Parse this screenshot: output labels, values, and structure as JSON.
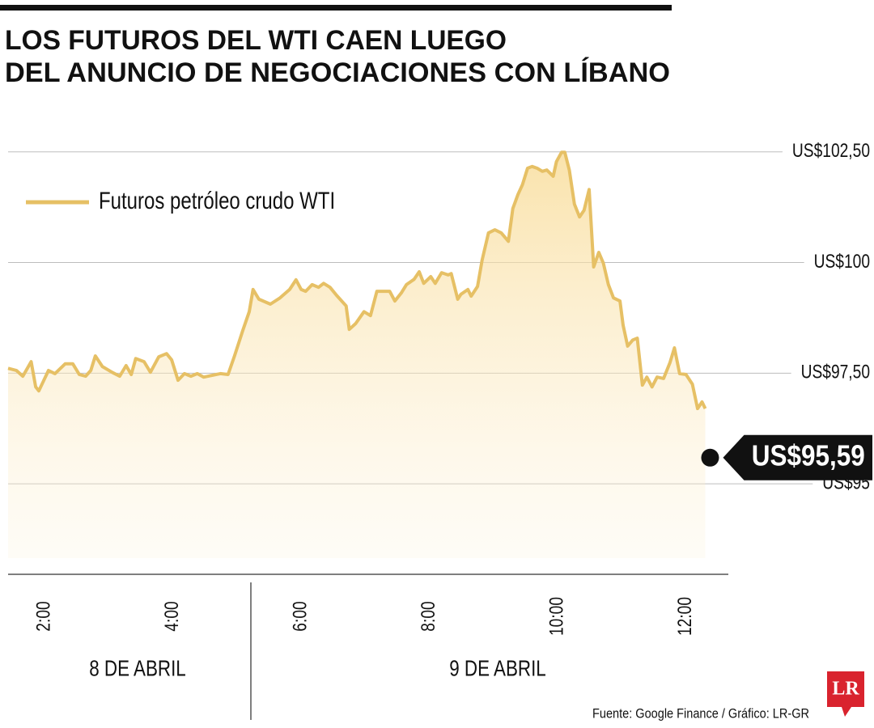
{
  "chart_data": {
    "type": "line",
    "title": [
      "LOS FUTUROS DEL WTI CAEN LUEGO",
      "DEL ANUNCIO DE NEGOCIACIONES CON LÍBANO"
    ],
    "legend_position": "upper left",
    "grid": true,
    "xlim": [
      1.43,
      12.66
    ],
    "ylim": [
      93.32,
      103.3
    ],
    "yticks": [
      {
        "value": 95,
        "label": "US$95"
      },
      {
        "value": 97.5,
        "label": "US$97,50"
      },
      {
        "value": 100,
        "label": "US$100"
      },
      {
        "value": 102.5,
        "label": "US$102,50"
      }
    ],
    "xticks": [
      {
        "value": 2,
        "label": "2:00"
      },
      {
        "value": 4,
        "label": "4:00"
      },
      {
        "value": 6,
        "label": "6:00"
      },
      {
        "value": 8,
        "label": "8:00"
      },
      {
        "value": 10,
        "label": "10:00"
      },
      {
        "value": 12,
        "label": "12:00"
      }
    ],
    "x_groups": [
      "8 DE ABRIL",
      "9 DE ABRIL"
    ],
    "series": [
      {
        "name": "Futuros petróleo crudo WTI",
        "color": "#e6c065",
        "x": [
          1.43,
          1.56,
          1.66,
          1.79,
          1.86,
          1.91,
          2.06,
          2.16,
          2.32,
          2.44,
          2.54,
          2.64,
          2.72,
          2.79,
          2.9,
          3.05,
          3.17,
          3.27,
          3.35,
          3.42,
          3.55,
          3.65,
          3.78,
          3.9,
          3.98,
          4.08,
          4.18,
          4.28,
          4.38,
          4.48,
          4.61,
          4.74,
          4.86,
          4.96,
          5.09,
          5.19,
          5.25,
          5.34,
          5.52,
          5.67,
          5.82,
          5.92,
          6.0,
          6.07,
          6.17,
          6.27,
          6.35,
          6.45,
          6.55,
          6.7,
          6.75,
          6.85,
          6.98,
          7.08,
          7.18,
          7.28,
          7.38,
          7.46,
          7.56,
          7.64,
          7.76,
          7.84,
          7.91,
          8.02,
          8.09,
          8.19,
          8.29,
          8.34,
          8.44,
          8.49,
          8.6,
          8.65,
          8.75,
          8.82,
          8.92,
          9.02,
          9.12,
          9.23,
          9.3,
          9.38,
          9.45,
          9.53,
          9.6,
          9.68,
          9.76,
          9.83,
          9.93,
          9.98,
          10.06,
          10.11,
          10.18,
          10.26,
          10.34,
          10.41,
          10.49,
          10.56,
          10.64,
          10.71,
          10.79,
          10.87,
          10.97,
          11.02,
          11.09,
          11.17,
          11.24,
          11.32,
          11.39,
          11.47,
          11.55,
          11.65,
          11.75,
          11.82,
          11.9,
          12.0,
          12.1,
          12.18,
          12.25,
          12.3
        ],
        "values": [
          97.61,
          97.56,
          97.43,
          97.76,
          97.19,
          97.1,
          97.56,
          97.49,
          97.71,
          97.71,
          97.47,
          97.43,
          97.56,
          97.89,
          97.65,
          97.52,
          97.43,
          97.67,
          97.47,
          97.83,
          97.76,
          97.52,
          97.87,
          97.94,
          97.8,
          97.34,
          97.49,
          97.43,
          97.49,
          97.41,
          97.45,
          97.49,
          97.47,
          97.89,
          98.47,
          98.89,
          99.39,
          99.17,
          99.06,
          99.2,
          99.39,
          99.61,
          99.39,
          99.35,
          99.5,
          99.44,
          99.53,
          99.44,
          99.26,
          99.02,
          98.49,
          98.62,
          98.89,
          98.8,
          99.35,
          99.35,
          99.35,
          99.13,
          99.31,
          99.5,
          99.62,
          99.79,
          99.53,
          99.68,
          99.53,
          99.77,
          99.72,
          99.75,
          99.17,
          99.28,
          99.39,
          99.24,
          99.46,
          100.05,
          100.67,
          100.74,
          100.67,
          100.48,
          101.22,
          101.54,
          101.76,
          102.13,
          102.17,
          102.13,
          102.06,
          102.09,
          101.95,
          102.28,
          102.49,
          102.49,
          102.09,
          101.32,
          101.03,
          101.18,
          101.65,
          99.9,
          100.23,
          99.99,
          99.5,
          99.2,
          99.13,
          98.58,
          98.11,
          98.25,
          98.29,
          97.23,
          97.41,
          97.19,
          97.41,
          97.38,
          97.74,
          98.07,
          97.49,
          97.47,
          97.25,
          96.7,
          96.85,
          96.7
        ]
      }
    ],
    "annotation": {
      "value": 95.59,
      "label": "US$95,59"
    },
    "source": "Fuente: Google Finance / Gráfico: LR-GR",
    "logo": "LR"
  }
}
